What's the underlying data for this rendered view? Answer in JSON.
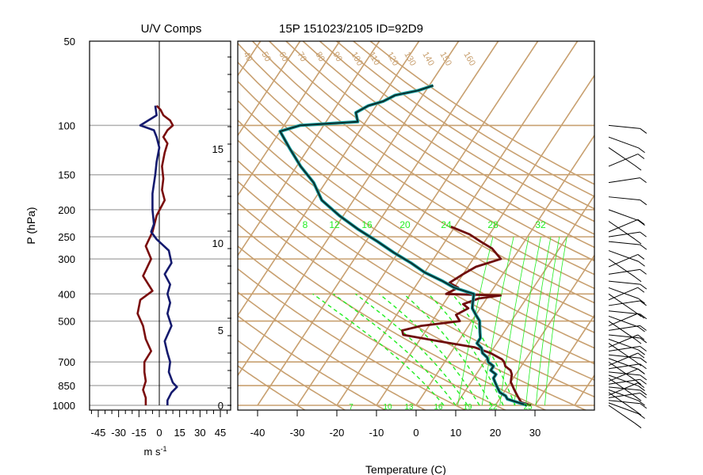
{
  "left_panel": {
    "title": "U/V Comps",
    "y_axis_label": "P (hPa)",
    "pressure_ticks": [
      50,
      100,
      150,
      200,
      250,
      300,
      400,
      500,
      700,
      850,
      1000
    ],
    "x_ticks": [
      -45,
      -30,
      -15,
      0,
      15,
      30,
      45
    ],
    "x_unit": "m s",
    "x_unit_exp": "-1"
  },
  "main_panel": {
    "title": "15P 151023/2105 ID=92D9",
    "x_label": "Temperature (C)",
    "x_ticks": [
      -40,
      -30,
      -20,
      -10,
      0,
      10,
      20,
      30
    ],
    "height_ticks_km": [
      0,
      5,
      10,
      15
    ],
    "potential_temp_labels": [
      40,
      50,
      60,
      70,
      80,
      90,
      100,
      110,
      120,
      130,
      140,
      150,
      160
    ],
    "mixing_ratio_labels": [
      8,
      12,
      16,
      20,
      24,
      28,
      32
    ],
    "moist_adiabat_labels": [
      7,
      10,
      13,
      16,
      19,
      22,
      25
    ]
  },
  "colors": {
    "background_lines": "#c8a070",
    "isobar": "#b0b0b0",
    "temperature": "#6e0c0c",
    "dewpoint": "#0b2e2e",
    "dewpoint_edge": "#1aa3a3",
    "u_component": "#7a0c0c",
    "v_component": "#141a6e",
    "mixing_ratio": "#22ee22",
    "wind_barbs": "#000000"
  },
  "chart_data": [
    {
      "type": "line",
      "panel": "U/V Comps",
      "x_range": [
        -52,
        52
      ],
      "y_scale": "log-pressure",
      "y_range_hPa": [
        1000,
        50
      ],
      "series": [
        {
          "name": "U",
          "points": [
            [
              -2,
              85
            ],
            [
              1,
              88
            ],
            [
              3,
              92
            ],
            [
              8,
              96
            ],
            [
              10,
              100
            ],
            [
              6,
              104
            ],
            [
              3,
              110
            ],
            [
              6,
              116
            ],
            [
              4,
              125
            ],
            [
              2,
              140
            ],
            [
              3,
              155
            ],
            [
              2,
              170
            ],
            [
              4,
              185
            ],
            [
              -2,
              210
            ],
            [
              -5,
              240
            ],
            [
              -10,
              270
            ],
            [
              -6,
              300
            ],
            [
              -12,
              345
            ],
            [
              -5,
              390
            ],
            [
              -14,
              420
            ],
            [
              -16,
              470
            ],
            [
              -12,
              520
            ],
            [
              -10,
              580
            ],
            [
              -6,
              640
            ],
            [
              -11,
              700
            ],
            [
              -11,
              760
            ],
            [
              -10,
              820
            ],
            [
              -12,
              880
            ],
            [
              -10,
              940
            ],
            [
              -10,
              1000
            ]
          ]
        },
        {
          "name": "V",
          "points": [
            [
              -3,
              85
            ],
            [
              -2,
              92
            ],
            [
              -14,
              100
            ],
            [
              -4,
              104
            ],
            [
              -2,
              110
            ],
            [
              0,
              120
            ],
            [
              -2,
              135
            ],
            [
              -3,
              150
            ],
            [
              -5,
              175
            ],
            [
              -5,
              200
            ],
            [
              -4,
              225
            ],
            [
              -6,
              240
            ],
            [
              -2,
              255
            ],
            [
              7,
              280
            ],
            [
              9,
              310
            ],
            [
              4,
              340
            ],
            [
              8,
              370
            ],
            [
              6,
              400
            ],
            [
              8,
              430
            ],
            [
              6,
              470
            ],
            [
              9,
              520
            ],
            [
              4,
              590
            ],
            [
              6,
              650
            ],
            [
              8,
              700
            ],
            [
              7,
              760
            ],
            [
              10,
              830
            ],
            [
              13,
              860
            ],
            [
              9,
              900
            ],
            [
              6,
              960
            ],
            [
              6,
              1000
            ]
          ]
        }
      ]
    },
    {
      "type": "line",
      "panel": "Skew-T",
      "x_range_C": [
        -45,
        45
      ],
      "y_scale": "log-pressure",
      "y_range_hPa": [
        1000,
        50
      ],
      "series": [
        {
          "name": "Temperature",
          "points": [
            [
              29,
              1000
            ],
            [
              26,
              975
            ],
            [
              25,
              950
            ],
            [
              24,
              925
            ],
            [
              23,
              900
            ],
            [
              22,
              875
            ],
            [
              21,
              850
            ],
            [
              20,
              825
            ],
            [
              19.5,
              800
            ],
            [
              19,
              775
            ],
            [
              18,
              750
            ],
            [
              16,
              725
            ],
            [
              15,
              700
            ],
            [
              14,
              685
            ],
            [
              10,
              650
            ],
            [
              5,
              620
            ],
            [
              -5,
              590
            ],
            [
              -15,
              560
            ],
            [
              -16,
              540
            ],
            [
              -12,
              520
            ],
            [
              -3,
              500
            ],
            [
              -5,
              475
            ],
            [
              -3,
              450
            ],
            [
              -5,
              435
            ],
            [
              -2,
              415
            ],
            [
              3,
              405
            ],
            [
              -11,
              400
            ],
            [
              -9,
              380
            ],
            [
              -12,
              365
            ],
            [
              -10,
              340
            ],
            [
              -8,
              320
            ],
            [
              -3,
              300
            ],
            [
              -7,
              275
            ],
            [
              -11,
              260
            ],
            [
              -15,
              245
            ],
            [
              -19,
              235
            ],
            [
              -21,
              230
            ]
          ]
        },
        {
          "name": "Dewpoint",
          "points": [
            [
              28,
              1000
            ],
            [
              25,
              975
            ],
            [
              22,
              950
            ],
            [
              21,
              925
            ],
            [
              19,
              900
            ],
            [
              18,
              875
            ],
            [
              17,
              850
            ],
            [
              16,
              825
            ],
            [
              15,
              800
            ],
            [
              15,
              775
            ],
            [
              13,
              750
            ],
            [
              13,
              725
            ],
            [
              11,
              700
            ],
            [
              10,
              675
            ],
            [
              8,
              650
            ],
            [
              7,
              625
            ],
            [
              5,
              600
            ],
            [
              5,
              575
            ],
            [
              4,
              550
            ],
            [
              3,
              525
            ],
            [
              2,
              500
            ],
            [
              0,
              475
            ],
            [
              -2,
              450
            ],
            [
              -3,
              425
            ],
            [
              -4,
              400
            ],
            [
              -10,
              380
            ],
            [
              -14,
              360
            ],
            [
              -20,
              335
            ],
            [
              -25,
              310
            ],
            [
              -31,
              285
            ],
            [
              -37,
              260
            ],
            [
              -44,
              235
            ],
            [
              -51,
              210
            ],
            [
              -58,
              185
            ],
            [
              -63,
              160
            ],
            [
              -69,
              140
            ],
            [
              -75,
              120
            ],
            [
              -80,
              105
            ],
            [
              -76,
              100
            ],
            [
              -62,
              97
            ],
            [
              -64,
              90
            ],
            [
              -62,
              85
            ],
            [
              -59,
              82
            ],
            [
              -57,
              78
            ],
            [
              -52,
              75
            ],
            [
              -49,
              72
            ]
          ]
        }
      ]
    },
    {
      "type": "barbs",
      "panel": "Wind",
      "pressure_levels_hPa": [
        1000,
        980,
        960,
        940,
        920,
        900,
        880,
        860,
        840,
        820,
        800,
        780,
        760,
        740,
        720,
        700,
        680,
        660,
        640,
        620,
        600,
        580,
        560,
        540,
        520,
        500,
        480,
        460,
        440,
        420,
        400,
        380,
        360,
        340,
        320,
        300,
        280,
        260,
        250,
        240,
        220,
        200,
        180,
        160,
        140,
        120,
        110,
        100
      ]
    }
  ]
}
